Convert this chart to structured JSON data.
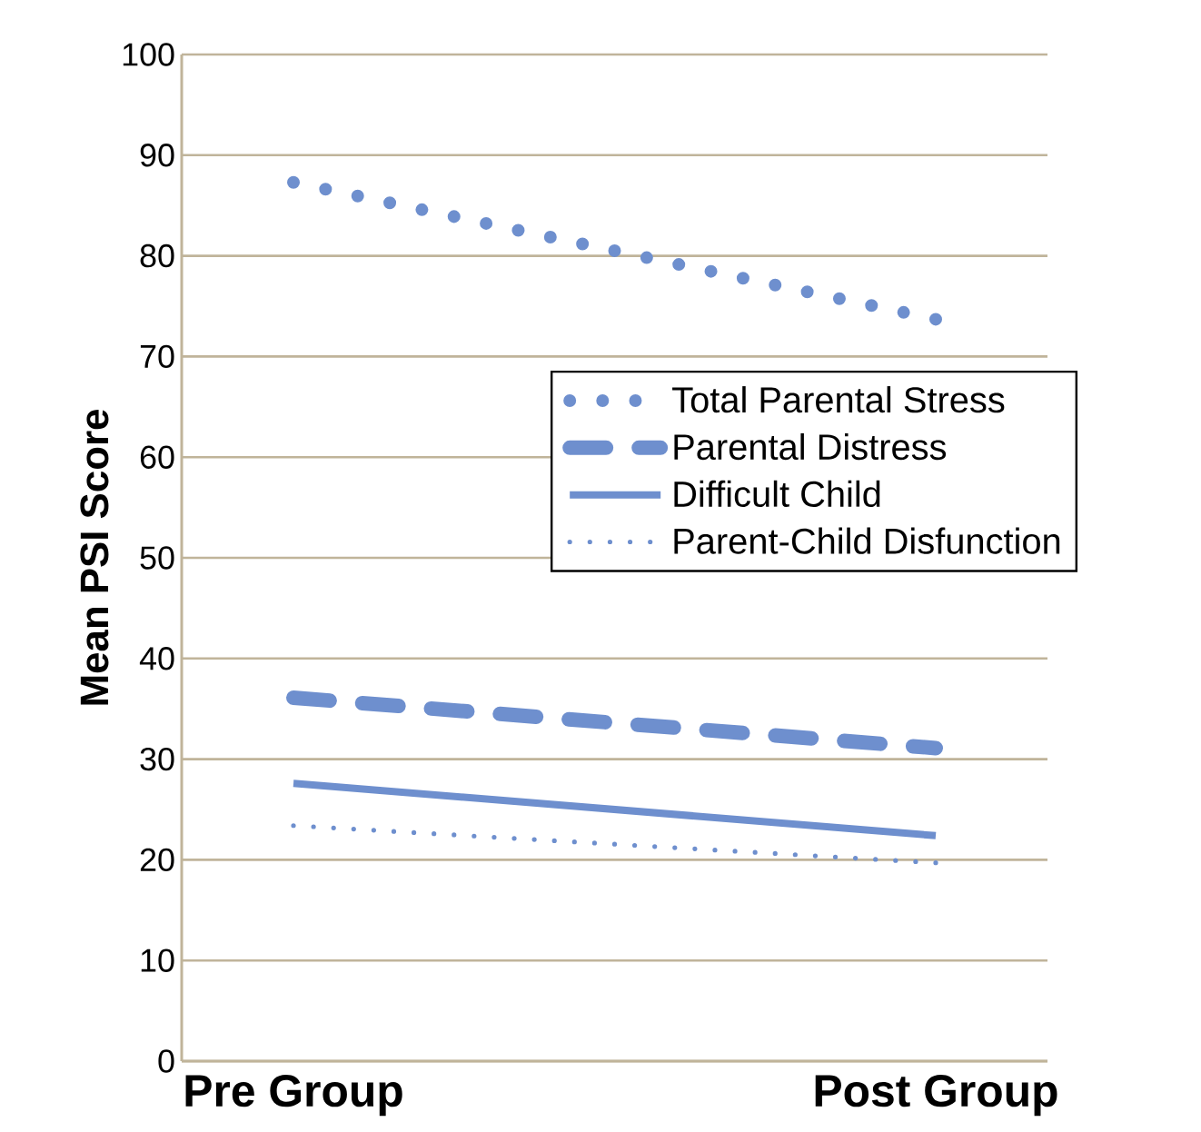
{
  "chart_data": {
    "type": "line",
    "ylabel": "Mean PSI Score",
    "categories": [
      "Pre Group",
      "Post Group"
    ],
    "series": [
      {
        "name": "Total Parental Stress",
        "color": "#6e8fce",
        "values": [
          87.3,
          73.7
        ],
        "line_style": "dotted"
      },
      {
        "name": "Parental Distress",
        "color": "#6e8fce",
        "values": [
          36.1,
          31.1
        ],
        "line_style": "dashed"
      },
      {
        "name": "Difficult Child",
        "color": "#6e8fce",
        "values": [
          27.6,
          22.4
        ],
        "line_style": "solid"
      },
      {
        "name": "Parent-Child Disfunction",
        "color": "#6e8fce",
        "values": [
          23.4,
          19.7
        ],
        "line_style": "dotted"
      }
    ],
    "ylim": [
      0,
      100
    ],
    "yticks": [
      0,
      10,
      20,
      30,
      40,
      50,
      60,
      70,
      80,
      90,
      100
    ],
    "grid": "y",
    "legend": "right",
    "marker": "none"
  }
}
